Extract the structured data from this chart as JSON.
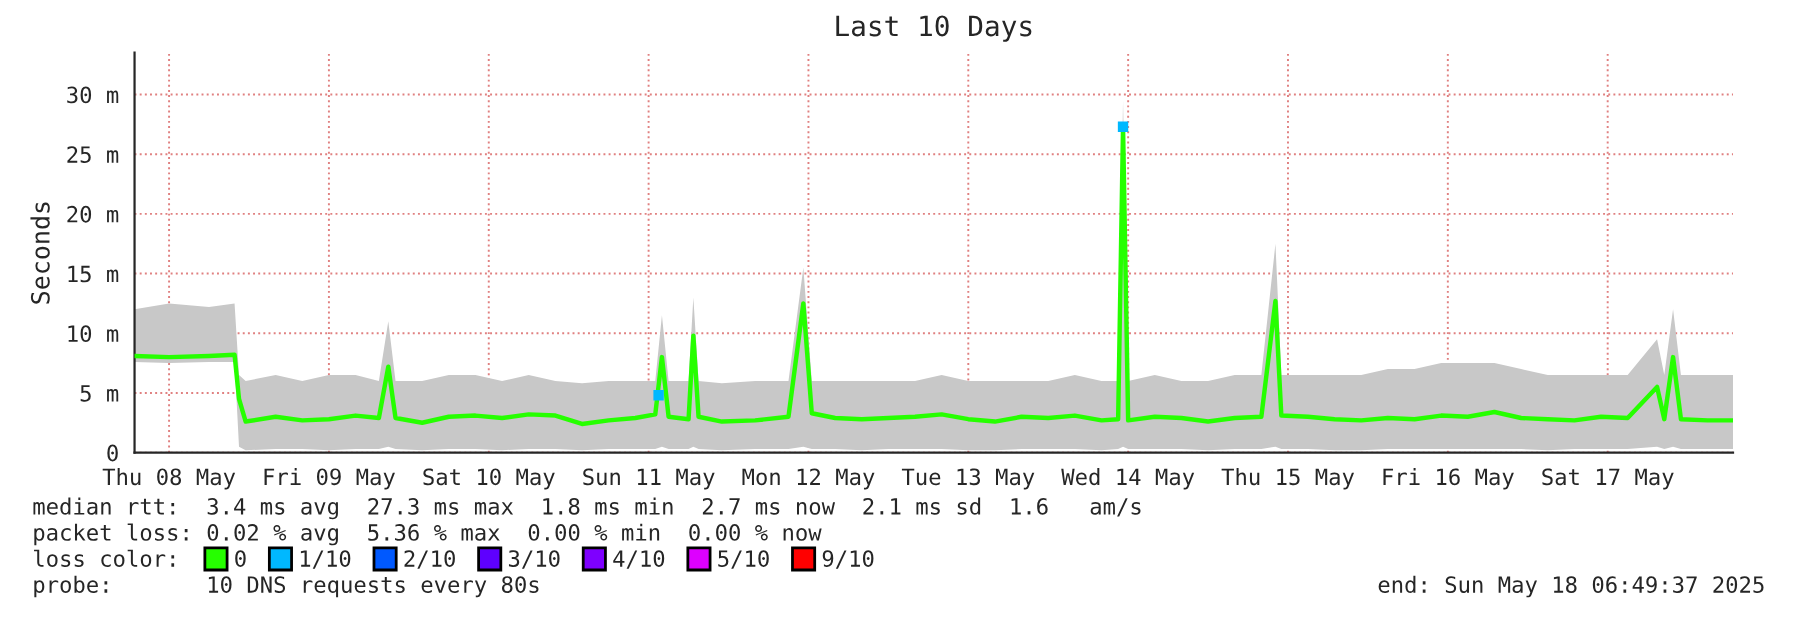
{
  "chart_data": {
    "type": "line",
    "title": "Last 10 Days",
    "ylabel": "Seconds",
    "legend_title": "loss color:",
    "xlim": [
      "2025-05-08T06:49",
      "2025-05-18T06:49"
    ],
    "xticks": [
      {
        "value": "2025-05-08T12:00",
        "label": "Thu 08 May"
      },
      {
        "value": "2025-05-09T12:00",
        "label": "Fri 09 May"
      },
      {
        "value": "2025-05-10T12:00",
        "label": "Sat 10 May"
      },
      {
        "value": "2025-05-11T12:00",
        "label": "Sun 11 May"
      },
      {
        "value": "2025-05-12T12:00",
        "label": "Mon 12 May"
      },
      {
        "value": "2025-05-13T12:00",
        "label": "Tue 13 May"
      },
      {
        "value": "2025-05-14T12:00",
        "label": "Wed 14 May"
      },
      {
        "value": "2025-05-15T12:00",
        "label": "Thu 15 May"
      },
      {
        "value": "2025-05-16T12:00",
        "label": "Fri 16 May"
      },
      {
        "value": "2025-05-17T12:00",
        "label": "Sat 17 May"
      }
    ],
    "ylim": [
      0,
      33.5
    ],
    "yticks": [
      {
        "value": 0,
        "label": "0"
      },
      {
        "value": 5,
        "label": "5 m"
      },
      {
        "value": 10,
        "label": "10 m"
      },
      {
        "value": 15,
        "label": "15 m"
      },
      {
        "value": 20,
        "label": "20 m"
      },
      {
        "value": 25,
        "label": "25 m"
      },
      {
        "value": 30,
        "label": "30 m"
      }
    ],
    "grid": true,
    "legend": "bottom",
    "series": [
      {
        "name": "0",
        "color": "#26ff00",
        "x": [
          "2025-05-08T06:49",
          "2025-05-08T12:00",
          "2025-05-08T18:00",
          "2025-05-08T21:50",
          "2025-05-08T22:30",
          "2025-05-08T23:30",
          "2025-05-09T04:00",
          "2025-05-09T08:00",
          "2025-05-09T12:00",
          "2025-05-09T16:00",
          "2025-05-09T19:30",
          "2025-05-09T20:55",
          "2025-05-09T22:00",
          "2025-05-10T02:00",
          "2025-05-10T06:00",
          "2025-05-10T10:00",
          "2025-05-10T14:00",
          "2025-05-10T18:00",
          "2025-05-10T22:00",
          "2025-05-11T02:00",
          "2025-05-11T06:00",
          "2025-05-11T10:00",
          "2025-05-11T13:00",
          "2025-05-11T14:00",
          "2025-05-11T15:00",
          "2025-05-11T18:00",
          "2025-05-11T18:43",
          "2025-05-11T19:30",
          "2025-05-11T23:00",
          "2025-05-12T04:00",
          "2025-05-12T09:00",
          "2025-05-12T11:14",
          "2025-05-12T12:30",
          "2025-05-12T16:00",
          "2025-05-12T20:00",
          "2025-05-13T00:00",
          "2025-05-13T04:00",
          "2025-05-13T08:00",
          "2025-05-13T12:00",
          "2025-05-13T16:00",
          "2025-05-13T20:00",
          "2025-05-14T00:00",
          "2025-05-14T04:00",
          "2025-05-14T08:00",
          "2025-05-14T10:30",
          "2025-05-14T11:14",
          "2025-05-14T12:00",
          "2025-05-14T16:00",
          "2025-05-14T20:00",
          "2025-05-15T00:00",
          "2025-05-15T04:00",
          "2025-05-15T08:00",
          "2025-05-15T10:07",
          "2025-05-15T11:00",
          "2025-05-15T15:00",
          "2025-05-15T19:00",
          "2025-05-15T23:00",
          "2025-05-16T03:00",
          "2025-05-16T07:00",
          "2025-05-16T11:00",
          "2025-05-16T15:00",
          "2025-05-16T19:00",
          "2025-05-16T23:00",
          "2025-05-17T03:00",
          "2025-05-17T07:00",
          "2025-05-17T11:00",
          "2025-05-17T15:00",
          "2025-05-17T19:25",
          "2025-05-17T20:30",
          "2025-05-17T21:49",
          "2025-05-17T23:00",
          "2025-05-18T03:00",
          "2025-05-18T06:49"
        ],
        "values": [
          8.1,
          8.0,
          8.1,
          8.2,
          4.5,
          2.6,
          3.0,
          2.7,
          2.8,
          3.1,
          2.9,
          7.2,
          2.9,
          2.5,
          3.0,
          3.1,
          2.9,
          3.2,
          3.1,
          2.4,
          2.7,
          2.9,
          3.2,
          8.0,
          3.0,
          2.8,
          9.8,
          3.0,
          2.6,
          2.7,
          3.0,
          12.5,
          3.3,
          2.9,
          2.8,
          2.9,
          3.0,
          3.2,
          2.8,
          2.6,
          3.0,
          2.9,
          3.1,
          2.7,
          2.8,
          27.3,
          2.7,
          3.0,
          2.9,
          2.6,
          2.9,
          3.0,
          12.7,
          3.1,
          3.0,
          2.8,
          2.7,
          2.9,
          2.8,
          3.1,
          3.0,
          3.4,
          2.9,
          2.8,
          2.7,
          3.0,
          2.9,
          5.5,
          2.8,
          8.0,
          2.8,
          2.7,
          2.7
        ],
        "lower": [
          7.6,
          7.5,
          7.6,
          7.6,
          0.5,
          0.2,
          0.3,
          0.3,
          0.2,
          0.3,
          0.3,
          0.5,
          0.3,
          0.2,
          0.3,
          0.3,
          0.2,
          0.3,
          0.3,
          0.2,
          0.3,
          0.3,
          0.3,
          0.5,
          0.3,
          0.3,
          0.5,
          0.3,
          0.2,
          0.3,
          0.3,
          0.5,
          0.3,
          0.3,
          0.2,
          0.3,
          0.3,
          0.3,
          0.2,
          0.2,
          0.3,
          0.3,
          0.3,
          0.2,
          0.3,
          0.5,
          0.3,
          0.3,
          0.3,
          0.2,
          0.3,
          0.3,
          0.5,
          0.3,
          0.3,
          0.2,
          0.2,
          0.3,
          0.3,
          0.3,
          0.3,
          0.3,
          0.3,
          0.2,
          0.3,
          0.3,
          0.3,
          0.5,
          0.3,
          0.5,
          0.3,
          0.3,
          0.3
        ],
        "upper": [
          12.0,
          12.5,
          12.2,
          12.5,
          6.5,
          6.0,
          6.5,
          6.0,
          6.5,
          6.5,
          6.0,
          11.0,
          6.0,
          6.0,
          6.5,
          6.5,
          6.0,
          6.5,
          6.0,
          5.8,
          6.0,
          6.0,
          6.0,
          11.5,
          6.0,
          6.0,
          13.0,
          6.0,
          5.8,
          6.0,
          6.0,
          15.5,
          6.0,
          6.0,
          6.0,
          6.0,
          6.0,
          6.5,
          6.0,
          6.0,
          6.0,
          6.0,
          6.5,
          6.0,
          6.0,
          29.5,
          6.0,
          6.5,
          6.0,
          6.0,
          6.5,
          6.5,
          17.5,
          6.5,
          6.5,
          6.5,
          6.5,
          7.0,
          7.0,
          7.5,
          7.5,
          7.5,
          7.0,
          6.5,
          6.5,
          6.5,
          6.5,
          9.5,
          6.5,
          12.0,
          6.5,
          6.5,
          6.5
        ]
      },
      {
        "name": "1/10",
        "color": "#00b8ff",
        "type": "scatter",
        "x": [
          "2025-05-11T13:30",
          "2025-05-14T11:14"
        ],
        "values": [
          4.8,
          27.3
        ]
      },
      {
        "name": "2/10",
        "color": "#0059ff",
        "type": "scatter"
      },
      {
        "name": "3/10",
        "color": "#5e00ff",
        "type": "scatter"
      },
      {
        "name": "4/10",
        "color": "#7e00ff",
        "type": "scatter"
      },
      {
        "name": "5/10",
        "color": "#dd00ff",
        "type": "scatter"
      },
      {
        "name": "9/10",
        "color": "#ff0000",
        "type": "scatter"
      }
    ],
    "annotations": [
      "median rtt:  3.4 ms avg  27.3 ms max  1.8 ms min  2.7 ms now  2.1 ms sd  1.6   am/s",
      "packet loss: 0.02 % avg  5.36 % max  0.00 % min  0.00 % now",
      "probe:       10 DNS requests every 80s",
      "end: Sun May 18 06:49:37 2025"
    ]
  }
}
